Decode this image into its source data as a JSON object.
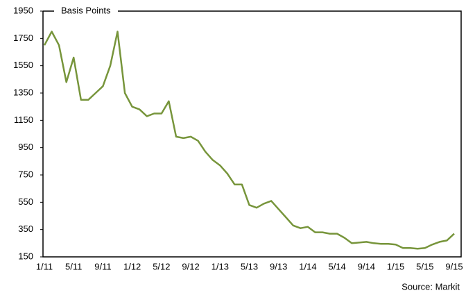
{
  "chart_data": {
    "type": "line",
    "title": "Basis Points",
    "source": "Source: Markit",
    "categories": [
      "1/11",
      null,
      null,
      null,
      "5/11",
      null,
      null,
      null,
      "9/11",
      null,
      null,
      null,
      "1/12",
      null,
      null,
      null,
      "5/12",
      null,
      null,
      null,
      "9/12",
      null,
      null,
      null,
      "1/13",
      null,
      null,
      null,
      "5/13",
      null,
      null,
      null,
      "9/13",
      null,
      null,
      null,
      "1/14",
      null,
      null,
      null,
      "5/14",
      null,
      null,
      null,
      "9/14",
      null,
      null,
      null,
      "1/15",
      null,
      null,
      null,
      "5/15",
      null,
      null,
      null,
      "9/15"
    ],
    "series": [
      {
        "name": "Basis Points",
        "color": "#77953b",
        "values": [
          1700,
          1800,
          1700,
          1430,
          1610,
          1300,
          1300,
          1350,
          1400,
          1550,
          1800,
          1350,
          1250,
          1230,
          1180,
          1200,
          1200,
          1290,
          1030,
          1020,
          1030,
          1000,
          920,
          860,
          820,
          760,
          680,
          680,
          530,
          510,
          540,
          560,
          500,
          440,
          380,
          360,
          370,
          330,
          330,
          320,
          320,
          290,
          250,
          255,
          260,
          250,
          245,
          245,
          240,
          215,
          215,
          210,
          215,
          240,
          260,
          270,
          320
        ]
      }
    ],
    "ylim": [
      150,
      1950
    ],
    "yticks": [
      150,
      350,
      550,
      750,
      950,
      1150,
      1350,
      1550,
      1750,
      1950
    ]
  }
}
